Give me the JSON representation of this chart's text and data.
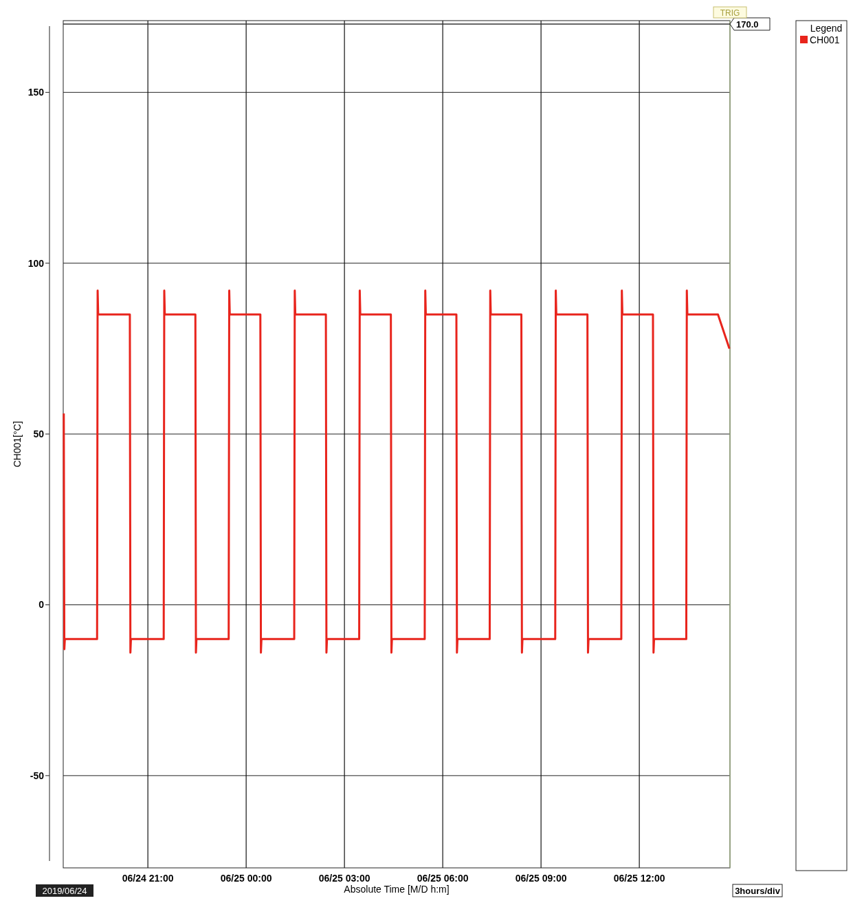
{
  "chart_data": {
    "type": "line",
    "xlabel": "Absolute Time [M/D h:m]",
    "ylabel": "CH001[°C]",
    "legend_title": "Legend",
    "legend": "right",
    "grid": true,
    "line_style": "solid",
    "xlim": [
      "2019-06-24T18:25",
      "2019-06-25T14:46"
    ],
    "xticks": [
      {
        "value": "2019-06-24T21:00",
        "label": "06/24 21:00"
      },
      {
        "value": "2019-06-25T00:00",
        "label": "06/25 00:00"
      },
      {
        "value": "2019-06-25T03:00",
        "label": "06/25 03:00"
      },
      {
        "value": "2019-06-25T06:00",
        "label": "06/25 06:00"
      },
      {
        "value": "2019-06-25T09:00",
        "label": "06/25 09:00"
      },
      {
        "value": "2019-06-25T12:00",
        "label": "06/25 12:00"
      }
    ],
    "ylim": [
      -77,
      171
    ],
    "yticks": [
      -50,
      0,
      50,
      100,
      150
    ],
    "ref_lines": [
      {
        "axis": "y",
        "value": 170,
        "label": "170.0",
        "color": "#333333"
      }
    ],
    "annotations": [
      "TRIG",
      "2019/06/24",
      "3hours/div"
    ],
    "series": [
      {
        "name": "CH001",
        "color": "#e8241c",
        "x": [
          "2019-06-24T18:26",
          "2019-06-24T18:27",
          "2019-06-24T18:28",
          "2019-06-24T19:27",
          "2019-06-24T19:28",
          "2019-06-24T19:29",
          "2019-06-24T20:27",
          "2019-06-24T20:28",
          "2019-06-24T20:29",
          "2019-06-24T21:29",
          "2019-06-24T21:30",
          "2019-06-24T21:31",
          "2019-06-24T22:27",
          "2019-06-24T22:28",
          "2019-06-24T22:29",
          "2019-06-24T23:28",
          "2019-06-24T23:29",
          "2019-06-24T23:30",
          "2019-06-25T00:26",
          "2019-06-25T00:27",
          "2019-06-25T00:28",
          "2019-06-25T01:28",
          "2019-06-25T01:29",
          "2019-06-25T01:30",
          "2019-06-25T02:26",
          "2019-06-25T02:27",
          "2019-06-25T02:28",
          "2019-06-25T03:27",
          "2019-06-25T03:28",
          "2019-06-25T03:29",
          "2019-06-25T04:25",
          "2019-06-25T04:26",
          "2019-06-25T04:27",
          "2019-06-25T05:27",
          "2019-06-25T05:28",
          "2019-06-25T05:29",
          "2019-06-25T06:25",
          "2019-06-25T06:26",
          "2019-06-25T06:27",
          "2019-06-25T07:26",
          "2019-06-25T07:27",
          "2019-06-25T07:28",
          "2019-06-25T08:24",
          "2019-06-25T08:25",
          "2019-06-25T08:26",
          "2019-06-25T09:26",
          "2019-06-25T09:27",
          "2019-06-25T09:28",
          "2019-06-25T10:25",
          "2019-06-25T10:26",
          "2019-06-25T10:27",
          "2019-06-25T11:27",
          "2019-06-25T11:28",
          "2019-06-25T11:29",
          "2019-06-25T12:25",
          "2019-06-25T12:26",
          "2019-06-25T12:27",
          "2019-06-25T13:26",
          "2019-06-25T13:27",
          "2019-06-25T13:28",
          "2019-06-25T14:24",
          "2019-06-25T14:45"
        ],
        "values": [
          56,
          -13,
          -10,
          -10,
          92,
          85,
          85,
          -14,
          -10,
          -10,
          92,
          85,
          85,
          -14,
          -10,
          -10,
          92,
          85,
          85,
          -14,
          -10,
          -10,
          92,
          85,
          85,
          -14,
          -10,
          -10,
          92,
          85,
          85,
          -14,
          -10,
          -10,
          92,
          85,
          85,
          -14,
          -10,
          -10,
          92,
          85,
          85,
          -14,
          -10,
          -10,
          92,
          85,
          85,
          -14,
          -10,
          -10,
          92,
          85,
          85,
          -14,
          -10,
          -10,
          92,
          85,
          85,
          75
        ]
      }
    ]
  }
}
